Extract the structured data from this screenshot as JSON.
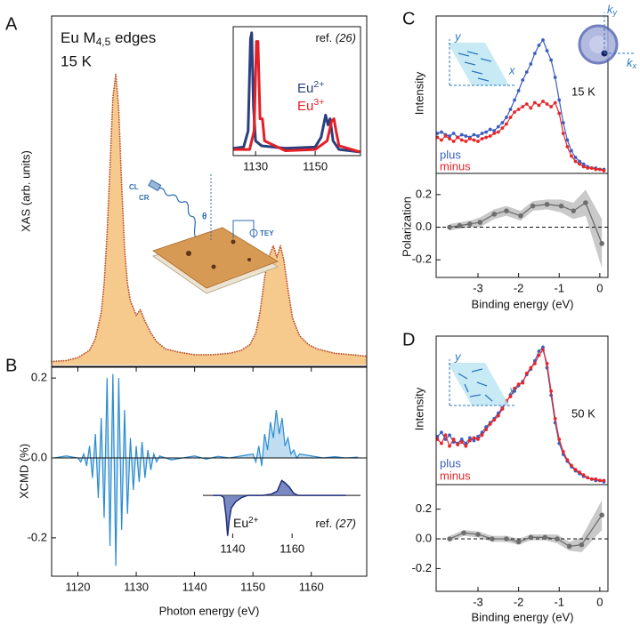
{
  "chart_data": [
    {
      "type": "area",
      "panel": "A",
      "title": "Eu M4,5 edges",
      "subtitle": "15 K",
      "ylabel": "XAS (arb. units)",
      "xlim": [
        1115.5,
        1169.5
      ],
      "ylim": [
        -0.005,
        1.2
      ],
      "color": "#f6c98d",
      "edge_color": "#b8542c",
      "x": [
        1115.5,
        1118,
        1120,
        1122,
        1123,
        1124,
        1124.5,
        1125,
        1125.5,
        1126,
        1126.5,
        1127,
        1127.5,
        1128,
        1128.5,
        1129,
        1130,
        1130.7,
        1131.5,
        1132.5,
        1133.5,
        1135,
        1137,
        1140,
        1143,
        1146,
        1148,
        1149.5,
        1150.5,
        1151.2,
        1152,
        1152.7,
        1153.5,
        1154.1,
        1154.7,
        1155.3,
        1156,
        1156.8,
        1158,
        1159.5,
        1161,
        1164,
        1167,
        1169.5
      ],
      "values": [
        0.012,
        0.015,
        0.025,
        0.05,
        0.09,
        0.18,
        0.28,
        0.45,
        0.68,
        0.92,
        1,
        0.88,
        0.62,
        0.4,
        0.28,
        0.22,
        0.17,
        0.19,
        0.15,
        0.11,
        0.08,
        0.055,
        0.045,
        0.035,
        0.035,
        0.04,
        0.05,
        0.07,
        0.11,
        0.18,
        0.3,
        0.37,
        0.41,
        0.37,
        0.41,
        0.36,
        0.26,
        0.16,
        0.1,
        0.07,
        0.055,
        0.04,
        0.035,
        0.03
      ],
      "annotations": [
        "CL",
        "CR",
        "θ",
        "TEY"
      ]
    },
    {
      "type": "line",
      "title": "ref. (26)",
      "xlim": [
        1122.5,
        1165.2
      ],
      "ylim": [
        0,
        1.05
      ],
      "xticks": [
        1130,
        1150
      ],
      "series": [
        {
          "name": "Eu2+",
          "color": "#2b3f7e",
          "x": [
            1122.5,
            1126,
            1127.5,
            1128.3,
            1128.7,
            1129.3,
            1130,
            1132,
            1140,
            1150,
            1152,
            1153.5,
            1154.3,
            1155,
            1156,
            1158,
            1165
          ],
          "values": [
            0.06,
            0.07,
            0.2,
            0.95,
            1,
            0.4,
            0.12,
            0.08,
            0.06,
            0.07,
            0.15,
            0.33,
            0.25,
            0.3,
            0.12,
            0.05,
            0.03
          ]
        },
        {
          "name": "Eu3+",
          "color": "#e41f26",
          "x": [
            1122.5,
            1128,
            1129.5,
            1130.3,
            1130.8,
            1131.5,
            1132.3,
            1133,
            1140,
            1150,
            1154,
            1155.5,
            1156.3,
            1157,
            1158,
            1165
          ],
          "values": [
            0.05,
            0.05,
            0.2,
            0.93,
            0.93,
            0.3,
            0.3,
            0.12,
            0.04,
            0.05,
            0.12,
            0.28,
            0.3,
            0.2,
            0.08,
            0.03
          ]
        }
      ]
    },
    {
      "type": "line",
      "panel": "B",
      "ylabel": "XCMD (%)",
      "xlabel": "Photon energy (eV)",
      "xlim": [
        1115.5,
        1169.5
      ],
      "ylim": [
        -0.296,
        0.227
      ],
      "xticks": [
        1120,
        1130,
        1140,
        1150,
        1160
      ],
      "yticks": [
        -0.2,
        {
          "value": 0,
          "label": "0.0"
        },
        0.2
      ],
      "color": "#2a8cd0",
      "x": [
        1116,
        1118,
        1120,
        1120.5,
        1121,
        1121.5,
        1122,
        1122.5,
        1123,
        1123.5,
        1124,
        1124.5,
        1125,
        1125.5,
        1126,
        1126.5,
        1127,
        1127.5,
        1128,
        1128.5,
        1129,
        1129.5,
        1130,
        1130.5,
        1131,
        1131.5,
        1132,
        1132.5,
        1133,
        1133.5,
        1134,
        1136,
        1138,
        1140,
        1142,
        1144,
        1146,
        1148,
        1150,
        1150.5,
        1151,
        1151.5,
        1152,
        1152.5,
        1153,
        1153.5,
        1154,
        1154.5,
        1155,
        1155.5,
        1156,
        1156.5,
        1157,
        1157.5,
        1158,
        1160,
        1162,
        1164,
        1166,
        1168
      ],
      "values": [
        0,
        0.005,
        0,
        -0.01,
        0.01,
        -0.02,
        0.03,
        -0.05,
        0.06,
        -0.1,
        0.1,
        -0.15,
        0.2,
        -0.22,
        0.21,
        -0.27,
        0.2,
        -0.18,
        0.12,
        -0.14,
        0.05,
        -0.08,
        0.03,
        -0.06,
        0.04,
        -0.05,
        0.02,
        -0.03,
        0.01,
        -0.01,
        0.005,
        -0.005,
        0,
        0.005,
        -0.003,
        0.004,
        0,
        0.005,
        0.01,
        -0.01,
        0.03,
        -0.02,
        0.06,
        0.02,
        0.09,
        0.05,
        0.12,
        0.06,
        0.1,
        0.03,
        0.05,
        0.01,
        0.02,
        0,
        0.01,
        0.005,
        0,
        0.003,
        0,
        0.002
      ]
    },
    {
      "type": "area",
      "title": "ref. (27)",
      "label": "Eu2+",
      "xlim": [
        1130,
        1183
      ],
      "ylim": [
        -1.0,
        0.42
      ],
      "xticks": [
        1140,
        1160
      ],
      "color": "#5a6cb4",
      "edge_color": "#1f2e78",
      "x": [
        1133.5,
        1136,
        1137,
        1137.8,
        1138.3,
        1138.8,
        1139.5,
        1141,
        1143,
        1145,
        1150,
        1153,
        1155,
        1156.5,
        1157.5,
        1159,
        1160.5,
        1162,
        1170,
        1178
      ],
      "values": [
        0,
        0,
        -0.05,
        -0.5,
        -0.95,
        -0.6,
        -0.3,
        -0.15,
        -0.05,
        0,
        0,
        0.03,
        0.1,
        0.35,
        0.3,
        0.2,
        0.05,
        0,
        0,
        0
      ]
    },
    {
      "type": "line",
      "panel": "C",
      "ylabel": "Intensity",
      "subtitle": "15 K",
      "xlim": [
        -4.03,
        0.2
      ],
      "ylim": [
        0,
        1.18
      ],
      "markers": true,
      "annotations": [
        "y",
        "x",
        "ky",
        "kx"
      ],
      "x": [
        -4,
        -3.9,
        -3.8,
        -3.7,
        -3.6,
        -3.5,
        -3.4,
        -3.3,
        -3.2,
        -3.1,
        -3,
        -2.9,
        -2.8,
        -2.7,
        -2.6,
        -2.5,
        -2.4,
        -2.3,
        -2.2,
        -2.1,
        -2,
        -1.9,
        -1.8,
        -1.7,
        -1.6,
        -1.5,
        -1.4,
        -1.3,
        -1.2,
        -1.1,
        -1,
        -0.9,
        -0.8,
        -0.7,
        -0.6,
        -0.5,
        -0.4,
        -0.3,
        -0.2,
        -0.1,
        0,
        0.1
      ],
      "series": [
        {
          "name": "plus",
          "color": "#3b5fc0",
          "values": [
            0.3,
            0.31,
            0.29,
            0.28,
            0.3,
            0.27,
            0.29,
            0.28,
            0.27,
            0.29,
            0.28,
            0.3,
            0.31,
            0.33,
            0.32,
            0.35,
            0.38,
            0.42,
            0.48,
            0.55,
            0.62,
            0.7,
            0.76,
            0.82,
            0.9,
            0.96,
            1,
            0.92,
            0.85,
            0.72,
            0.55,
            0.38,
            0.25,
            0.17,
            0.12,
            0.09,
            0.07,
            0.05,
            0.04,
            0.04,
            0.03,
            0.03
          ]
        },
        {
          "name": "minus",
          "color": "#e8262a",
          "values": [
            0.27,
            0.25,
            0.28,
            0.26,
            0.24,
            0.27,
            0.25,
            0.24,
            0.26,
            0.25,
            0.24,
            0.26,
            0.27,
            0.28,
            0.3,
            0.31,
            0.34,
            0.37,
            0.42,
            0.46,
            0.48,
            0.5,
            0.52,
            0.49,
            0.53,
            0.51,
            0.54,
            0.52,
            0.5,
            0.53,
            0.45,
            0.3,
            0.2,
            0.13,
            0.09,
            0.07,
            0.05,
            0.04,
            0.04,
            0.03,
            0.03,
            0.02
          ]
        }
      ]
    },
    {
      "type": "band",
      "ylabel": "Polarization",
      "xlabel": "Binding energy (eV)",
      "xlim": [
        -4.03,
        0.2
      ],
      "ylim": [
        -0.308,
        0.33
      ],
      "xticks": [
        -3,
        -2,
        -1,
        0
      ],
      "yticks": [
        -0.2,
        {
          "value": 0,
          "label": "0.0"
        },
        0.2
      ],
      "color": "#6e6e6e",
      "band_color": "#c9c9c9",
      "x": [
        -3.7,
        -3.45,
        -3.2,
        -2.95,
        -2.6,
        -2.3,
        -1.95,
        -1.65,
        -1.3,
        -0.95,
        -0.65,
        -0.35,
        0.05
      ],
      "values": [
        0,
        0.01,
        0.02,
        0.03,
        0.08,
        0.1,
        0.07,
        0.13,
        0.14,
        0.13,
        0.1,
        0.15,
        -0.1
      ],
      "errors": [
        0.02,
        0.02,
        0.02,
        0.03,
        0.03,
        0.03,
        0.03,
        0.03,
        0.03,
        0.04,
        0.05,
        0.08,
        0.15
      ]
    },
    {
      "type": "line",
      "panel": "D",
      "ylabel": "Intensity",
      "subtitle": "50 K",
      "xlim": [
        -4.03,
        0.2
      ],
      "ylim": [
        0,
        1.08
      ],
      "markers": true,
      "annotations": [
        "y",
        "x"
      ],
      "x": [
        -4,
        -3.9,
        -3.8,
        -3.7,
        -3.6,
        -3.5,
        -3.4,
        -3.3,
        -3.2,
        -3.1,
        -3,
        -2.9,
        -2.8,
        -2.7,
        -2.6,
        -2.5,
        -2.4,
        -2.3,
        -2.2,
        -2.1,
        -2,
        -1.9,
        -1.8,
        -1.7,
        -1.6,
        -1.5,
        -1.4,
        -1.3,
        -1.2,
        -1.1,
        -1,
        -0.9,
        -0.8,
        -0.7,
        -0.6,
        -0.5,
        -0.4,
        -0.3,
        -0.2,
        -0.1,
        0,
        0.1
      ],
      "series": [
        {
          "name": "plus",
          "color": "#3b5fc0",
          "values": [
            0.35,
            0.38,
            0.33,
            0.36,
            0.31,
            0.3,
            0.33,
            0.3,
            0.34,
            0.32,
            0.35,
            0.38,
            0.42,
            0.45,
            0.48,
            0.52,
            0.56,
            0.6,
            0.65,
            0.68,
            0.72,
            0.75,
            0.8,
            0.84,
            0.9,
            0.97,
            1,
            0.85,
            0.65,
            0.45,
            0.3,
            0.22,
            0.17,
            0.13,
            0.1,
            0.08,
            0.06,
            0.05,
            0.04,
            0.03,
            0.03,
            0.02
          ]
        },
        {
          "name": "minus",
          "color": "#e8262a",
          "values": [
            0.33,
            0.3,
            0.36,
            0.28,
            0.33,
            0.29,
            0.31,
            0.28,
            0.32,
            0.34,
            0.33,
            0.36,
            0.4,
            0.44,
            0.47,
            0.5,
            0.55,
            0.61,
            0.64,
            0.7,
            0.73,
            0.74,
            0.81,
            0.85,
            0.88,
            0.94,
            0.98,
            0.88,
            0.68,
            0.48,
            0.33,
            0.24,
            0.18,
            0.14,
            0.11,
            0.09,
            0.07,
            0.05,
            0.04,
            0.04,
            0.03,
            0.03
          ]
        }
      ]
    },
    {
      "type": "band",
      "xlabel": "Binding energy (eV)",
      "xlim": [
        -4.03,
        0.2
      ],
      "ylim": [
        -0.353,
        0.365
      ],
      "xticks": [
        -3,
        -2,
        -1,
        0
      ],
      "yticks": [
        -0.2,
        {
          "value": 0,
          "label": "0.0"
        },
        0.2
      ],
      "color": "#6e6e6e",
      "band_color": "#c9c9c9",
      "x": [
        -3.7,
        -3.35,
        -3,
        -2.65,
        -2.3,
        -2,
        -1.7,
        -1.35,
        -1.05,
        -0.75,
        -0.45,
        0.05
      ],
      "values": [
        0,
        0.04,
        0.03,
        0,
        0,
        -0.02,
        0.01,
        0.01,
        0,
        -0.05,
        -0.04,
        0.16
      ],
      "errors": [
        0.02,
        0.02,
        0.02,
        0.02,
        0.02,
        0.02,
        0.02,
        0.02,
        0.03,
        0.03,
        0.05,
        0.1
      ]
    }
  ]
}
